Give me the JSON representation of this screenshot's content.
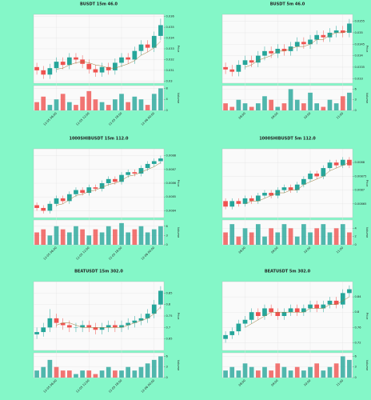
{
  "chart_data": [
    {
      "type": "candlestick",
      "title": "BUSDT 15m 46.0",
      "ylabel": "Price",
      "vlabel": "Volume",
      "categories": [
        null,
        null,
        null,
        "12-05 06:00",
        null,
        null,
        null,
        null,
        "12-05 12:00",
        null,
        null,
        null,
        null,
        "12-05 18:00",
        null,
        null,
        null,
        null,
        "12-06 00:00",
        null
      ],
      "open": [
        0.0313,
        0.031,
        0.0306,
        0.0312,
        0.0318,
        0.0315,
        0.0322,
        0.032,
        0.0316,
        0.0311,
        0.0308,
        0.0313,
        0.031,
        0.0317,
        0.0322,
        0.032,
        0.0328,
        0.0334,
        0.0331,
        0.0342
      ],
      "high": [
        0.0317,
        0.0314,
        0.0316,
        0.0322,
        0.0322,
        0.0326,
        0.0326,
        0.0324,
        0.032,
        0.0315,
        0.0317,
        0.0317,
        0.0321,
        0.0326,
        0.0326,
        0.0332,
        0.0338,
        0.0338,
        0.0346,
        0.0358
      ],
      "low": [
        0.0306,
        0.0302,
        0.0302,
        0.0308,
        0.0311,
        0.0311,
        0.0316,
        0.0312,
        0.0307,
        0.0304,
        0.0304,
        0.0306,
        0.0306,
        0.0313,
        0.0316,
        0.0316,
        0.0324,
        0.0327,
        0.0327,
        0.0338
      ],
      "close": [
        0.031,
        0.0306,
        0.0312,
        0.0318,
        0.0315,
        0.0322,
        0.032,
        0.0316,
        0.0311,
        0.0308,
        0.0313,
        0.031,
        0.0317,
        0.0322,
        0.032,
        0.0328,
        0.0334,
        0.0331,
        0.0342,
        0.0352
      ],
      "ma": [
        null,
        null,
        null,
        0.0311,
        0.0312,
        0.0315,
        0.0317,
        0.0318,
        0.0317,
        0.0315,
        0.0314,
        0.0312,
        0.0312,
        0.0314,
        0.0316,
        0.0319,
        0.0324,
        0.0327,
        0.0331,
        0.0337
      ],
      "volume": [
        3,
        5,
        2,
        4,
        6,
        3,
        2,
        5,
        7,
        4,
        3,
        2,
        4,
        6,
        3,
        5,
        4,
        2,
        6,
        8
      ],
      "ylim": [
        0.0298,
        0.0362
      ],
      "yticks": [
        0.03,
        0.031,
        0.032,
        0.033,
        0.034,
        0.035,
        0.036
      ],
      "vlim": [
        0,
        9
      ],
      "vticks": [
        0,
        4,
        8
      ],
      "up_color": "#26a69a",
      "down_color": "#ef5350",
      "ma_color": "#9a7b3c"
    },
    {
      "type": "candlestick",
      "title": "BUSDT 5m 46.0",
      "ylabel": "Price",
      "vlabel": "Volume",
      "categories": [
        null,
        null,
        null,
        "08:00",
        null,
        null,
        null,
        null,
        "09:00",
        null,
        null,
        null,
        null,
        "10:00",
        null,
        null,
        null,
        null,
        "11:00",
        null
      ],
      "open": [
        0.0335,
        0.0334,
        0.0333,
        0.0336,
        0.0338,
        0.0337,
        0.034,
        0.0342,
        0.0341,
        0.0343,
        0.0342,
        0.0344,
        0.0346,
        0.0345,
        0.0347,
        0.0349,
        0.0348,
        0.035,
        0.0351,
        0.035
      ],
      "high": [
        0.0337,
        0.0336,
        0.0338,
        0.034,
        0.034,
        0.0342,
        0.0344,
        0.0344,
        0.0345,
        0.0345,
        0.0346,
        0.0348,
        0.0348,
        0.0349,
        0.0351,
        0.0351,
        0.0352,
        0.0353,
        0.0353,
        0.0356
      ],
      "low": [
        0.0332,
        0.0331,
        0.0331,
        0.0334,
        0.0335,
        0.0335,
        0.0338,
        0.0339,
        0.0339,
        0.034,
        0.034,
        0.0342,
        0.0343,
        0.0343,
        0.0345,
        0.0346,
        0.0346,
        0.0348,
        0.0348,
        0.0348
      ],
      "close": [
        0.0334,
        0.0333,
        0.0336,
        0.0338,
        0.0337,
        0.034,
        0.0342,
        0.0341,
        0.0343,
        0.0342,
        0.0344,
        0.0346,
        0.0345,
        0.0347,
        0.0349,
        0.0348,
        0.035,
        0.0351,
        0.035,
        0.0354
      ],
      "ma": [
        null,
        null,
        null,
        0.0335,
        0.0336,
        0.0338,
        0.0339,
        0.034,
        0.0342,
        0.0342,
        0.0343,
        0.0344,
        0.0344,
        0.0345,
        0.0347,
        0.0347,
        0.0349,
        0.035,
        0.035,
        0.0351
      ],
      "volume": [
        2,
        1,
        3,
        2,
        1,
        2,
        4,
        3,
        1,
        2,
        6,
        3,
        2,
        5,
        2,
        1,
        3,
        2,
        4,
        5
      ],
      "ylim": [
        0.0328,
        0.0358
      ],
      "yticks": [
        0.033,
        0.0335,
        0.034,
        0.0345,
        0.035,
        0.0355
      ],
      "vlim": [
        0,
        7
      ],
      "vticks": [
        0,
        3,
        6
      ],
      "up_color": "#26a69a",
      "down_color": "#ef5350",
      "ma_color": "#9a7b3c"
    },
    {
      "type": "candlestick",
      "title": "1000SHIBUSDT 15m 112.0",
      "ylabel": "Price",
      "vlabel": "Volume",
      "categories": [
        null,
        null,
        null,
        "12-05 06:00",
        null,
        null,
        null,
        null,
        "12-05 12:00",
        null,
        null,
        null,
        null,
        "12-05 18:00",
        null,
        null,
        null,
        null,
        "12-06 00:00",
        null
      ],
      "open": [
        0.00844,
        0.00842,
        0.0084,
        0.00845,
        0.00849,
        0.00847,
        0.00852,
        0.00855,
        0.00853,
        0.00857,
        0.00856,
        0.0086,
        0.00863,
        0.00861,
        0.00866,
        0.00868,
        0.00867,
        0.00871,
        0.00874,
        0.00876
      ],
      "high": [
        0.00846,
        0.00844,
        0.00847,
        0.00851,
        0.00851,
        0.00854,
        0.00857,
        0.00857,
        0.00859,
        0.00859,
        0.00862,
        0.00865,
        0.00865,
        0.00868,
        0.0087,
        0.0087,
        0.00873,
        0.00876,
        0.00878,
        0.0088
      ],
      "low": [
        0.0084,
        0.00838,
        0.00838,
        0.00843,
        0.00845,
        0.00845,
        0.0085,
        0.00851,
        0.00851,
        0.00854,
        0.00854,
        0.00858,
        0.00859,
        0.00859,
        0.00864,
        0.00865,
        0.00865,
        0.00869,
        0.00872,
        0.00874
      ],
      "close": [
        0.00842,
        0.0084,
        0.00845,
        0.00849,
        0.00847,
        0.00852,
        0.00855,
        0.00853,
        0.00857,
        0.00856,
        0.0086,
        0.00863,
        0.00861,
        0.00866,
        0.00868,
        0.00867,
        0.00871,
        0.00874,
        0.00876,
        0.00878
      ],
      "ma": [
        null,
        null,
        null,
        0.00844,
        0.00845,
        0.00848,
        0.00851,
        0.00852,
        0.00854,
        0.00855,
        0.00857,
        0.00859,
        0.0086,
        0.00862,
        0.00865,
        0.00866,
        0.00868,
        0.0087,
        0.00872,
        0.00875
      ],
      "volume": [
        4,
        5,
        3,
        6,
        5,
        4,
        6,
        5,
        3,
        5,
        4,
        6,
        5,
        7,
        4,
        5,
        6,
        4,
        5,
        6
      ],
      "ylim": [
        0.00835,
        0.00885
      ],
      "yticks": [
        0.0084,
        0.0085,
        0.0086,
        0.0087,
        0.0088
      ],
      "vlim": [
        0,
        8
      ],
      "vticks": [
        0,
        3,
        6
      ],
      "up_color": "#26a69a",
      "down_color": "#ef5350",
      "ma_color": "#9a7b3c"
    },
    {
      "type": "candlestick",
      "title": "1000SHIBUSDT 5m 112.0",
      "ylabel": "Price",
      "vlabel": "Volume",
      "categories": [
        null,
        null,
        null,
        "08:00",
        null,
        null,
        null,
        null,
        "09:00",
        null,
        null,
        null,
        null,
        "10:00",
        null,
        null,
        null,
        null,
        "11:00",
        null
      ],
      "open": [
        0.00866,
        0.00864,
        0.00866,
        0.00865,
        0.00867,
        0.00866,
        0.00868,
        0.00869,
        0.00868,
        0.0087,
        0.00871,
        0.0087,
        0.00872,
        0.00874,
        0.00876,
        0.00875,
        0.00878,
        0.0088,
        0.00879,
        0.00881
      ],
      "high": [
        0.00867,
        0.00867,
        0.00867,
        0.00868,
        0.00868,
        0.00869,
        0.0087,
        0.0087,
        0.00871,
        0.00872,
        0.00872,
        0.00873,
        0.00875,
        0.00877,
        0.00877,
        0.00879,
        0.00881,
        0.00881,
        0.00882,
        0.00882
      ],
      "low": [
        0.00863,
        0.00863,
        0.00864,
        0.00864,
        0.00865,
        0.00865,
        0.00867,
        0.00867,
        0.00867,
        0.00869,
        0.00869,
        0.00869,
        0.00871,
        0.00873,
        0.00874,
        0.00874,
        0.00877,
        0.00878,
        0.00878,
        0.00878
      ],
      "close": [
        0.00864,
        0.00866,
        0.00865,
        0.00867,
        0.00866,
        0.00868,
        0.00869,
        0.00868,
        0.0087,
        0.00871,
        0.0087,
        0.00872,
        0.00874,
        0.00876,
        0.00875,
        0.00878,
        0.0088,
        0.00879,
        0.00881,
        0.00879
      ],
      "ma": [
        null,
        null,
        null,
        0.00865,
        0.00866,
        0.00866,
        0.00867,
        0.00868,
        0.00869,
        0.00869,
        0.0087,
        0.0087,
        0.00872,
        0.00873,
        0.00874,
        0.00875,
        0.00877,
        0.00878,
        0.00879,
        0.0088
      ],
      "volume": [
        3,
        5,
        2,
        4,
        3,
        5,
        2,
        4,
        3,
        5,
        4,
        2,
        5,
        3,
        4,
        5,
        3,
        4,
        5,
        3
      ],
      "ylim": [
        0.0086,
        0.00885
      ],
      "yticks": [
        0.00865,
        0.0087,
        0.00875,
        0.0088
      ],
      "vlim": [
        0,
        6
      ],
      "vticks": [
        0,
        2,
        4
      ],
      "up_color": "#26a69a",
      "down_color": "#ef5350",
      "ma_color": "#9a7b3c"
    },
    {
      "type": "candlestick",
      "title": "BEATUSDT 15m 302.0",
      "ylabel": "Price",
      "vlabel": "Volume",
      "categories": [
        null,
        null,
        null,
        "12-05 06:00",
        null,
        null,
        null,
        null,
        "12-05 12:00",
        null,
        null,
        null,
        null,
        "12-05 18:00",
        null,
        null,
        null,
        null,
        "12-06 00:00",
        null
      ],
      "open": [
        0.67,
        0.68,
        0.7,
        0.74,
        0.72,
        0.71,
        0.7,
        0.7,
        0.71,
        0.7,
        0.69,
        0.7,
        0.71,
        0.7,
        0.71,
        0.72,
        0.73,
        0.74,
        0.76,
        0.8
      ],
      "high": [
        0.7,
        0.72,
        0.78,
        0.76,
        0.74,
        0.73,
        0.72,
        0.73,
        0.73,
        0.72,
        0.72,
        0.73,
        0.73,
        0.73,
        0.74,
        0.75,
        0.76,
        0.78,
        0.82,
        0.88
      ],
      "low": [
        0.65,
        0.66,
        0.68,
        0.7,
        0.69,
        0.68,
        0.68,
        0.68,
        0.68,
        0.67,
        0.67,
        0.68,
        0.68,
        0.68,
        0.69,
        0.7,
        0.71,
        0.72,
        0.74,
        0.78
      ],
      "close": [
        0.68,
        0.7,
        0.74,
        0.72,
        0.71,
        0.7,
        0.7,
        0.71,
        0.7,
        0.69,
        0.7,
        0.71,
        0.7,
        0.71,
        0.72,
        0.73,
        0.74,
        0.76,
        0.8,
        0.86
      ],
      "ma": [
        null,
        null,
        null,
        0.71,
        0.72,
        0.72,
        0.71,
        0.7,
        0.7,
        0.7,
        0.7,
        0.7,
        0.7,
        0.7,
        0.71,
        0.72,
        0.73,
        0.74,
        0.76,
        0.79
      ],
      "volume": [
        2,
        3,
        5,
        3,
        2,
        2,
        1,
        2,
        2,
        1,
        2,
        3,
        2,
        2,
        3,
        2,
        3,
        4,
        5,
        6
      ],
      "ylim": [
        0.6,
        0.9
      ],
      "yticks": [
        0.65,
        0.7,
        0.75,
        0.8,
        0.85
      ],
      "vlim": [
        0,
        7
      ],
      "vticks": [
        0,
        3,
        6
      ],
      "up_color": "#26a69a",
      "down_color": "#ef5350",
      "ma_color": "#9a7b3c"
    },
    {
      "type": "candlestick",
      "title": "BEATUSDT 5m 302.0",
      "ylabel": "Price",
      "vlabel": "Volume",
      "categories": [
        null,
        null,
        null,
        "08:00",
        null,
        null,
        null,
        null,
        "09:00",
        null,
        null,
        null,
        null,
        "10:00",
        null,
        null,
        null,
        null,
        "11:00",
        null
      ],
      "open": [
        0.73,
        0.74,
        0.75,
        0.77,
        0.78,
        0.8,
        0.79,
        0.81,
        0.8,
        0.79,
        0.8,
        0.81,
        0.8,
        0.81,
        0.82,
        0.81,
        0.82,
        0.83,
        0.82,
        0.85
      ],
      "high": [
        0.75,
        0.76,
        0.78,
        0.79,
        0.81,
        0.81,
        0.82,
        0.82,
        0.81,
        0.81,
        0.82,
        0.82,
        0.82,
        0.83,
        0.83,
        0.83,
        0.84,
        0.84,
        0.86,
        0.87
      ],
      "low": [
        0.72,
        0.73,
        0.74,
        0.76,
        0.77,
        0.78,
        0.78,
        0.79,
        0.78,
        0.78,
        0.79,
        0.79,
        0.79,
        0.8,
        0.8,
        0.8,
        0.81,
        0.81,
        0.81,
        0.84
      ],
      "close": [
        0.74,
        0.75,
        0.77,
        0.78,
        0.8,
        0.79,
        0.81,
        0.8,
        0.79,
        0.8,
        0.81,
        0.8,
        0.81,
        0.82,
        0.81,
        0.82,
        0.83,
        0.82,
        0.85,
        0.86
      ],
      "ma": [
        null,
        null,
        null,
        0.76,
        0.77,
        0.78,
        0.79,
        0.8,
        0.8,
        0.8,
        0.8,
        0.8,
        0.8,
        0.81,
        0.81,
        0.81,
        0.82,
        0.82,
        0.83,
        0.84
      ],
      "volume": [
        2,
        3,
        2,
        4,
        3,
        2,
        3,
        2,
        4,
        3,
        2,
        3,
        2,
        3,
        4,
        2,
        3,
        4,
        6,
        5
      ],
      "ylim": [
        0.7,
        0.88
      ],
      "yticks": [
        0.72,
        0.76,
        0.8,
        0.84
      ],
      "vlim": [
        0,
        7
      ],
      "vticks": [
        0,
        3,
        6
      ],
      "up_color": "#26a69a",
      "down_color": "#ef5350",
      "ma_color": "#9a7b3c"
    }
  ]
}
